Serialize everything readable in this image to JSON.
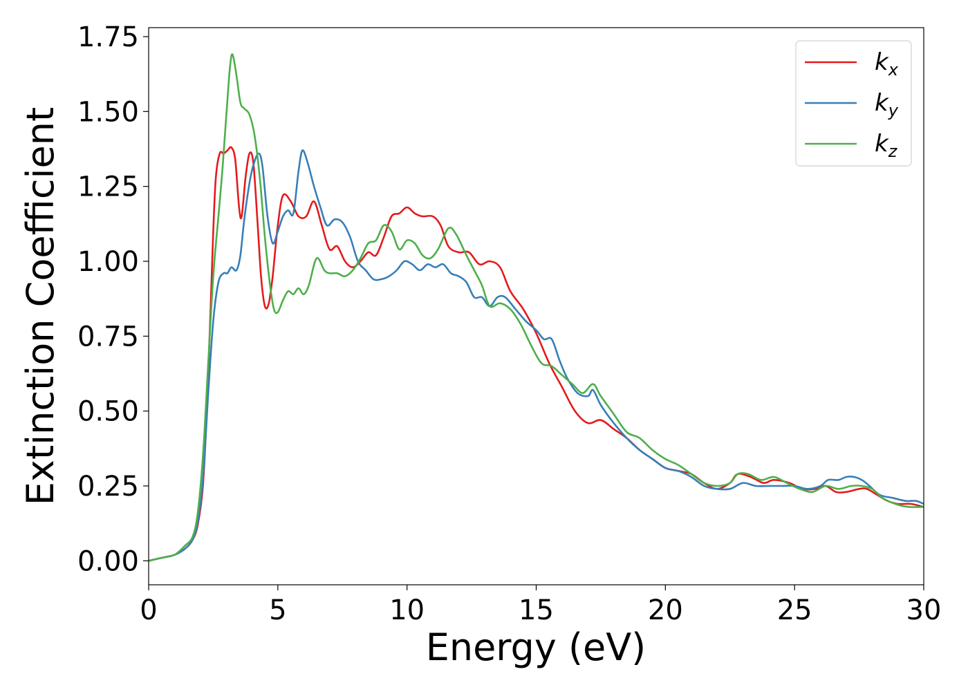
{
  "chart_data": {
    "type": "line",
    "title": "",
    "xlabel": "Energy (eV)",
    "ylabel": "Extinction Coefficient",
    "xlim": [
      0,
      30
    ],
    "ylim": [
      -0.08,
      1.78
    ],
    "xticks": [
      0,
      5,
      10,
      15,
      20,
      25,
      30
    ],
    "xtick_labels": [
      "0",
      "5",
      "10",
      "15",
      "20",
      "25",
      "30"
    ],
    "yticks": [
      0,
      0.25,
      0.5,
      0.75,
      1.0,
      1.25,
      1.5,
      1.75
    ],
    "ytick_labels": [
      "0.00",
      "0.25",
      "0.50",
      "0.75",
      "1.00",
      "1.25",
      "1.50",
      "1.75"
    ],
    "grid": false,
    "legend_position": "top-right",
    "series": [
      {
        "name": "k_x",
        "legend_base": "k",
        "legend_sub": "x",
        "color": "#e41a1c",
        "points": [
          [
            0,
            0.0
          ],
          [
            0.5,
            0.01
          ],
          [
            1.0,
            0.02
          ],
          [
            1.4,
            0.04
          ],
          [
            1.7,
            0.07
          ],
          [
            1.9,
            0.12
          ],
          [
            2.1,
            0.25
          ],
          [
            2.25,
            0.5
          ],
          [
            2.4,
            0.85
          ],
          [
            2.5,
            1.1
          ],
          [
            2.6,
            1.28
          ],
          [
            2.75,
            1.36
          ],
          [
            2.9,
            1.36
          ],
          [
            3.05,
            1.37
          ],
          [
            3.2,
            1.38
          ],
          [
            3.35,
            1.34
          ],
          [
            3.5,
            1.18
          ],
          [
            3.6,
            1.15
          ],
          [
            3.75,
            1.28
          ],
          [
            3.9,
            1.36
          ],
          [
            4.05,
            1.33
          ],
          [
            4.2,
            1.15
          ],
          [
            4.35,
            0.95
          ],
          [
            4.5,
            0.85
          ],
          [
            4.65,
            0.86
          ],
          [
            4.8,
            0.95
          ],
          [
            5.0,
            1.12
          ],
          [
            5.2,
            1.22
          ],
          [
            5.5,
            1.2
          ],
          [
            5.8,
            1.15
          ],
          [
            6.1,
            1.15
          ],
          [
            6.4,
            1.2
          ],
          [
            6.7,
            1.12
          ],
          [
            7.0,
            1.04
          ],
          [
            7.3,
            1.05
          ],
          [
            7.6,
            1.0
          ],
          [
            7.9,
            0.98
          ],
          [
            8.2,
            1.0
          ],
          [
            8.5,
            1.03
          ],
          [
            8.8,
            1.02
          ],
          [
            9.1,
            1.08
          ],
          [
            9.4,
            1.15
          ],
          [
            9.7,
            1.16
          ],
          [
            10.0,
            1.18
          ],
          [
            10.3,
            1.16
          ],
          [
            10.6,
            1.15
          ],
          [
            11.0,
            1.15
          ],
          [
            11.3,
            1.12
          ],
          [
            11.6,
            1.05
          ],
          [
            12.0,
            1.03
          ],
          [
            12.4,
            1.03
          ],
          [
            12.8,
            0.99
          ],
          [
            13.2,
            1.0
          ],
          [
            13.6,
            0.98
          ],
          [
            14.0,
            0.9
          ],
          [
            14.5,
            0.84
          ],
          [
            15.0,
            0.76
          ],
          [
            15.5,
            0.66
          ],
          [
            16.0,
            0.58
          ],
          [
            16.5,
            0.5
          ],
          [
            17.0,
            0.46
          ],
          [
            17.5,
            0.47
          ],
          [
            18.0,
            0.44
          ],
          [
            18.5,
            0.41
          ],
          [
            19.0,
            0.37
          ],
          [
            19.5,
            0.34
          ],
          [
            20.0,
            0.31
          ],
          [
            20.5,
            0.3
          ],
          [
            21.0,
            0.29
          ],
          [
            21.5,
            0.26
          ],
          [
            22.0,
            0.24
          ],
          [
            22.5,
            0.26
          ],
          [
            22.8,
            0.29
          ],
          [
            23.3,
            0.28
          ],
          [
            23.8,
            0.26
          ],
          [
            24.2,
            0.27
          ],
          [
            24.8,
            0.26
          ],
          [
            25.3,
            0.24
          ],
          [
            25.8,
            0.24
          ],
          [
            26.2,
            0.25
          ],
          [
            26.6,
            0.23
          ],
          [
            27.0,
            0.23
          ],
          [
            27.5,
            0.24
          ],
          [
            27.8,
            0.24
          ],
          [
            28.2,
            0.22
          ],
          [
            28.6,
            0.2
          ],
          [
            29.0,
            0.19
          ],
          [
            29.5,
            0.19
          ],
          [
            30.0,
            0.18
          ]
        ]
      },
      {
        "name": "k_y",
        "legend_base": "k",
        "legend_sub": "y",
        "color": "#377eb8",
        "points": [
          [
            0,
            0.0
          ],
          [
            0.5,
            0.01
          ],
          [
            1.0,
            0.02
          ],
          [
            1.4,
            0.04
          ],
          [
            1.7,
            0.07
          ],
          [
            1.9,
            0.13
          ],
          [
            2.1,
            0.27
          ],
          [
            2.3,
            0.55
          ],
          [
            2.5,
            0.8
          ],
          [
            2.7,
            0.93
          ],
          [
            2.9,
            0.96
          ],
          [
            3.05,
            0.96
          ],
          [
            3.2,
            0.98
          ],
          [
            3.4,
            0.97
          ],
          [
            3.55,
            1.02
          ],
          [
            3.7,
            1.14
          ],
          [
            3.9,
            1.26
          ],
          [
            4.05,
            1.32
          ],
          [
            4.25,
            1.36
          ],
          [
            4.4,
            1.32
          ],
          [
            4.6,
            1.15
          ],
          [
            4.8,
            1.06
          ],
          [
            5.0,
            1.1
          ],
          [
            5.2,
            1.15
          ],
          [
            5.4,
            1.17
          ],
          [
            5.6,
            1.16
          ],
          [
            5.8,
            1.3
          ],
          [
            5.95,
            1.37
          ],
          [
            6.15,
            1.33
          ],
          [
            6.4,
            1.25
          ],
          [
            6.65,
            1.18
          ],
          [
            6.9,
            1.12
          ],
          [
            7.2,
            1.14
          ],
          [
            7.5,
            1.13
          ],
          [
            7.8,
            1.08
          ],
          [
            8.1,
            1.0
          ],
          [
            8.4,
            0.97
          ],
          [
            8.7,
            0.94
          ],
          [
            9.0,
            0.94
          ],
          [
            9.3,
            0.95
          ],
          [
            9.6,
            0.97
          ],
          [
            9.9,
            1.0
          ],
          [
            10.2,
            0.99
          ],
          [
            10.5,
            0.97
          ],
          [
            10.8,
            0.99
          ],
          [
            11.1,
            0.98
          ],
          [
            11.4,
            0.99
          ],
          [
            11.7,
            0.96
          ],
          [
            12.0,
            0.95
          ],
          [
            12.3,
            0.93
          ],
          [
            12.6,
            0.88
          ],
          [
            12.9,
            0.88
          ],
          [
            13.2,
            0.85
          ],
          [
            13.5,
            0.88
          ],
          [
            13.8,
            0.88
          ],
          [
            14.2,
            0.84
          ],
          [
            14.6,
            0.8
          ],
          [
            15.0,
            0.77
          ],
          [
            15.3,
            0.74
          ],
          [
            15.6,
            0.74
          ],
          [
            15.9,
            0.67
          ],
          [
            16.2,
            0.61
          ],
          [
            16.6,
            0.56
          ],
          [
            17.0,
            0.55
          ],
          [
            17.2,
            0.57
          ],
          [
            17.5,
            0.52
          ],
          [
            18.0,
            0.46
          ],
          [
            18.5,
            0.41
          ],
          [
            19.0,
            0.37
          ],
          [
            19.5,
            0.34
          ],
          [
            20.0,
            0.31
          ],
          [
            20.5,
            0.3
          ],
          [
            21.0,
            0.28
          ],
          [
            21.5,
            0.25
          ],
          [
            22.0,
            0.24
          ],
          [
            22.5,
            0.24
          ],
          [
            23.0,
            0.26
          ],
          [
            23.5,
            0.25
          ],
          [
            24.0,
            0.25
          ],
          [
            24.5,
            0.25
          ],
          [
            25.0,
            0.25
          ],
          [
            25.5,
            0.24
          ],
          [
            26.0,
            0.25
          ],
          [
            26.3,
            0.27
          ],
          [
            26.7,
            0.27
          ],
          [
            27.0,
            0.28
          ],
          [
            27.3,
            0.28
          ],
          [
            27.6,
            0.27
          ],
          [
            27.9,
            0.25
          ],
          [
            28.3,
            0.22
          ],
          [
            28.8,
            0.21
          ],
          [
            29.3,
            0.2
          ],
          [
            29.7,
            0.2
          ],
          [
            30.0,
            0.19
          ]
        ]
      },
      {
        "name": "k_z",
        "legend_base": "k",
        "legend_sub": "z",
        "color": "#4daf4a",
        "points": [
          [
            0,
            0.0
          ],
          [
            0.5,
            0.01
          ],
          [
            1.0,
            0.02
          ],
          [
            1.4,
            0.05
          ],
          [
            1.7,
            0.08
          ],
          [
            1.9,
            0.16
          ],
          [
            2.1,
            0.35
          ],
          [
            2.3,
            0.65
          ],
          [
            2.5,
            0.95
          ],
          [
            2.7,
            1.15
          ],
          [
            2.85,
            1.3
          ],
          [
            3.0,
            1.48
          ],
          [
            3.15,
            1.65
          ],
          [
            3.25,
            1.69
          ],
          [
            3.4,
            1.62
          ],
          [
            3.55,
            1.53
          ],
          [
            3.7,
            1.51
          ],
          [
            3.9,
            1.49
          ],
          [
            4.1,
            1.42
          ],
          [
            4.3,
            1.28
          ],
          [
            4.5,
            1.08
          ],
          [
            4.7,
            0.92
          ],
          [
            4.85,
            0.84
          ],
          [
            5.0,
            0.83
          ],
          [
            5.2,
            0.87
          ],
          [
            5.4,
            0.9
          ],
          [
            5.6,
            0.89
          ],
          [
            5.8,
            0.91
          ],
          [
            6.0,
            0.89
          ],
          [
            6.2,
            0.92
          ],
          [
            6.5,
            1.01
          ],
          [
            6.8,
            0.97
          ],
          [
            7.0,
            0.96
          ],
          [
            7.3,
            0.96
          ],
          [
            7.6,
            0.95
          ],
          [
            7.9,
            0.97
          ],
          [
            8.2,
            1.01
          ],
          [
            8.5,
            1.06
          ],
          [
            8.8,
            1.07
          ],
          [
            9.1,
            1.12
          ],
          [
            9.4,
            1.1
          ],
          [
            9.7,
            1.04
          ],
          [
            10.0,
            1.07
          ],
          [
            10.3,
            1.06
          ],
          [
            10.6,
            1.02
          ],
          [
            10.9,
            1.01
          ],
          [
            11.2,
            1.04
          ],
          [
            11.6,
            1.11
          ],
          [
            11.9,
            1.09
          ],
          [
            12.3,
            1.02
          ],
          [
            12.6,
            0.97
          ],
          [
            12.9,
            0.92
          ],
          [
            13.2,
            0.85
          ],
          [
            13.6,
            0.86
          ],
          [
            14.0,
            0.84
          ],
          [
            14.4,
            0.79
          ],
          [
            14.8,
            0.72
          ],
          [
            15.2,
            0.66
          ],
          [
            15.6,
            0.65
          ],
          [
            16.0,
            0.62
          ],
          [
            16.4,
            0.59
          ],
          [
            16.8,
            0.56
          ],
          [
            17.2,
            0.59
          ],
          [
            17.5,
            0.55
          ],
          [
            18.0,
            0.49
          ],
          [
            18.5,
            0.43
          ],
          [
            19.0,
            0.41
          ],
          [
            19.5,
            0.37
          ],
          [
            20.0,
            0.34
          ],
          [
            20.5,
            0.32
          ],
          [
            21.0,
            0.29
          ],
          [
            21.5,
            0.26
          ],
          [
            22.0,
            0.25
          ],
          [
            22.5,
            0.26
          ],
          [
            22.8,
            0.29
          ],
          [
            23.2,
            0.29
          ],
          [
            23.7,
            0.27
          ],
          [
            24.2,
            0.28
          ],
          [
            24.7,
            0.26
          ],
          [
            25.2,
            0.24
          ],
          [
            25.7,
            0.23
          ],
          [
            26.2,
            0.25
          ],
          [
            26.7,
            0.24
          ],
          [
            27.2,
            0.25
          ],
          [
            27.6,
            0.25
          ],
          [
            28.0,
            0.24
          ],
          [
            28.4,
            0.21
          ],
          [
            28.9,
            0.19
          ],
          [
            29.4,
            0.18
          ],
          [
            30.0,
            0.18
          ]
        ]
      }
    ]
  }
}
